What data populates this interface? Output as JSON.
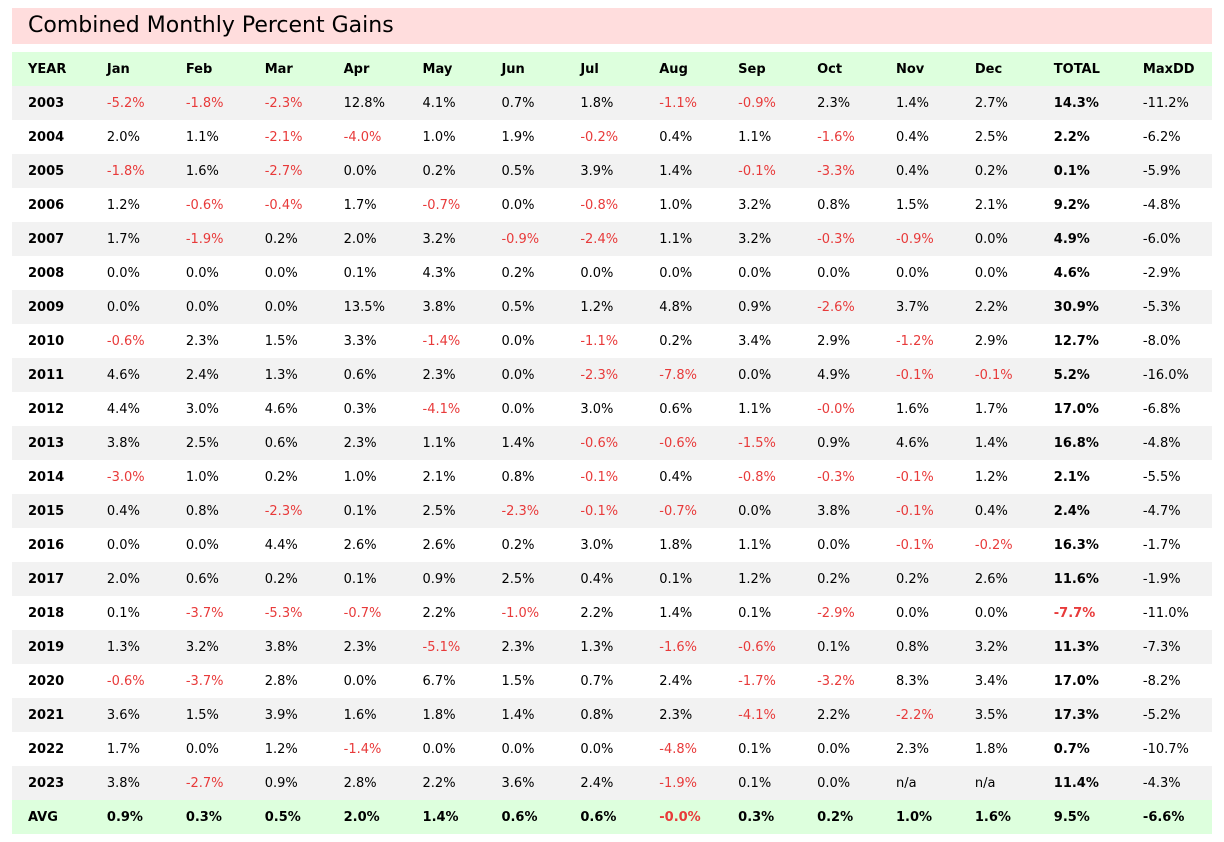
{
  "title": "Combined Monthly Percent Gains",
  "headers": [
    "YEAR",
    "Jan",
    "Feb",
    "Mar",
    "Apr",
    "May",
    "Jun",
    "Jul",
    "Aug",
    "Sep",
    "Oct",
    "Nov",
    "Dec",
    "TOTAL",
    "MaxDD"
  ],
  "rows": [
    [
      "2003",
      "-5.2%",
      "-1.8%",
      "-2.3%",
      "12.8%",
      "4.1%",
      "0.7%",
      "1.8%",
      "-1.1%",
      "-0.9%",
      "2.3%",
      "1.4%",
      "2.7%",
      "14.3%",
      "-11.2%"
    ],
    [
      "2004",
      "2.0%",
      "1.1%",
      "-2.1%",
      "-4.0%",
      "1.0%",
      "1.9%",
      "-0.2%",
      "0.4%",
      "1.1%",
      "-1.6%",
      "0.4%",
      "2.5%",
      "2.2%",
      "-6.2%"
    ],
    [
      "2005",
      "-1.8%",
      "1.6%",
      "-2.7%",
      "0.0%",
      "0.2%",
      "0.5%",
      "3.9%",
      "1.4%",
      "-0.1%",
      "-3.3%",
      "0.4%",
      "0.2%",
      "0.1%",
      "-5.9%"
    ],
    [
      "2006",
      "1.2%",
      "-0.6%",
      "-0.4%",
      "1.7%",
      "-0.7%",
      "0.0%",
      "-0.8%",
      "1.0%",
      "3.2%",
      "0.8%",
      "1.5%",
      "2.1%",
      "9.2%",
      "-4.8%"
    ],
    [
      "2007",
      "1.7%",
      "-1.9%",
      "0.2%",
      "2.0%",
      "3.2%",
      "-0.9%",
      "-2.4%",
      "1.1%",
      "3.2%",
      "-0.3%",
      "-0.9%",
      "0.0%",
      "4.9%",
      "-6.0%"
    ],
    [
      "2008",
      "0.0%",
      "0.0%",
      "0.0%",
      "0.1%",
      "4.3%",
      "0.2%",
      "0.0%",
      "0.0%",
      "0.0%",
      "0.0%",
      "0.0%",
      "0.0%",
      "4.6%",
      "-2.9%"
    ],
    [
      "2009",
      "0.0%",
      "0.0%",
      "0.0%",
      "13.5%",
      "3.8%",
      "0.5%",
      "1.2%",
      "4.8%",
      "0.9%",
      "-2.6%",
      "3.7%",
      "2.2%",
      "30.9%",
      "-5.3%"
    ],
    [
      "2010",
      "-0.6%",
      "2.3%",
      "1.5%",
      "3.3%",
      "-1.4%",
      "0.0%",
      "-1.1%",
      "0.2%",
      "3.4%",
      "2.9%",
      "-1.2%",
      "2.9%",
      "12.7%",
      "-8.0%"
    ],
    [
      "2011",
      "4.6%",
      "2.4%",
      "1.3%",
      "0.6%",
      "2.3%",
      "0.0%",
      "-2.3%",
      "-7.8%",
      "0.0%",
      "4.9%",
      "-0.1%",
      "-0.1%",
      "5.2%",
      "-16.0%"
    ],
    [
      "2012",
      "4.4%",
      "3.0%",
      "4.6%",
      "0.3%",
      "-4.1%",
      "0.0%",
      "3.0%",
      "0.6%",
      "1.1%",
      "-0.0%",
      "1.6%",
      "1.7%",
      "17.0%",
      "-6.8%"
    ],
    [
      "2013",
      "3.8%",
      "2.5%",
      "0.6%",
      "2.3%",
      "1.1%",
      "1.4%",
      "-0.6%",
      "-0.6%",
      "-1.5%",
      "0.9%",
      "4.6%",
      "1.4%",
      "16.8%",
      "-4.8%"
    ],
    [
      "2014",
      "-3.0%",
      "1.0%",
      "0.2%",
      "1.0%",
      "2.1%",
      "0.8%",
      "-0.1%",
      "0.4%",
      "-0.8%",
      "-0.3%",
      "-0.1%",
      "1.2%",
      "2.1%",
      "-5.5%"
    ],
    [
      "2015",
      "0.4%",
      "0.8%",
      "-2.3%",
      "0.1%",
      "2.5%",
      "-2.3%",
      "-0.1%",
      "-0.7%",
      "0.0%",
      "3.8%",
      "-0.1%",
      "0.4%",
      "2.4%",
      "-4.7%"
    ],
    [
      "2016",
      "0.0%",
      "0.0%",
      "4.4%",
      "2.6%",
      "2.6%",
      "0.2%",
      "3.0%",
      "1.8%",
      "1.1%",
      "0.0%",
      "-0.1%",
      "-0.2%",
      "16.3%",
      "-1.7%"
    ],
    [
      "2017",
      "2.0%",
      "0.6%",
      "0.2%",
      "0.1%",
      "0.9%",
      "2.5%",
      "0.4%",
      "0.1%",
      "1.2%",
      "0.2%",
      "0.2%",
      "2.6%",
      "11.6%",
      "-1.9%"
    ],
    [
      "2018",
      "0.1%",
      "-3.7%",
      "-5.3%",
      "-0.7%",
      "2.2%",
      "-1.0%",
      "2.2%",
      "1.4%",
      "0.1%",
      "-2.9%",
      "0.0%",
      "0.0%",
      "-7.7%",
      "-11.0%"
    ],
    [
      "2019",
      "1.3%",
      "3.2%",
      "3.8%",
      "2.3%",
      "-5.1%",
      "2.3%",
      "1.3%",
      "-1.6%",
      "-0.6%",
      "0.1%",
      "0.8%",
      "3.2%",
      "11.3%",
      "-7.3%"
    ],
    [
      "2020",
      "-0.6%",
      "-3.7%",
      "2.8%",
      "0.0%",
      "6.7%",
      "1.5%",
      "0.7%",
      "2.4%",
      "-1.7%",
      "-3.2%",
      "8.3%",
      "3.4%",
      "17.0%",
      "-8.2%"
    ],
    [
      "2021",
      "3.6%",
      "1.5%",
      "3.9%",
      "1.6%",
      "1.8%",
      "1.4%",
      "0.8%",
      "2.3%",
      "-4.1%",
      "2.2%",
      "-2.2%",
      "3.5%",
      "17.3%",
      "-5.2%"
    ],
    [
      "2022",
      "1.7%",
      "0.0%",
      "1.2%",
      "-1.4%",
      "0.0%",
      "0.0%",
      "0.0%",
      "-4.8%",
      "0.1%",
      "0.0%",
      "2.3%",
      "1.8%",
      "0.7%",
      "-10.7%"
    ],
    [
      "2023",
      "3.8%",
      "-2.7%",
      "0.9%",
      "2.8%",
      "2.2%",
      "3.6%",
      "2.4%",
      "-1.9%",
      "0.1%",
      "0.0%",
      "n/a",
      "n/a",
      "11.4%",
      "-4.3%"
    ]
  ],
  "avg": [
    "AVG",
    "0.9%",
    "0.3%",
    "0.5%",
    "2.0%",
    "1.4%",
    "0.6%",
    "0.6%",
    "-0.0%",
    "0.3%",
    "0.2%",
    "1.0%",
    "1.6%",
    "9.5%",
    "-6.6%"
  ],
  "colors": {
    "title_bg": "#ffdddd",
    "header_bg": "#ddffdd",
    "row_alt_bg": "#f2f2f2",
    "negative": "#e83a3a"
  }
}
